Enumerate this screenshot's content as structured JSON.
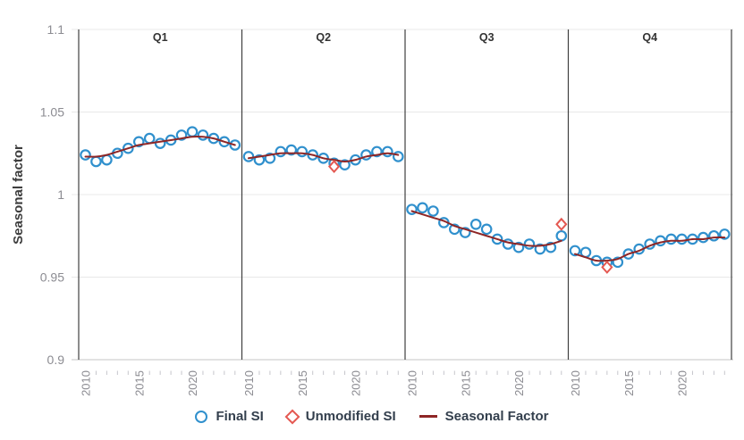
{
  "y_axis": {
    "title": "Seasonal factor",
    "tick_labels": [
      "1.1",
      "1.05",
      "1",
      "0.95",
      "0.9"
    ],
    "tick_values": [
      1.1,
      1.05,
      1.0,
      0.95,
      0.9
    ],
    "min": 0.9,
    "max": 1.1
  },
  "x_axis": {
    "first_year": 2010,
    "last_year": 2024,
    "labeled_years": [
      2010,
      2015,
      2020
    ]
  },
  "legend": {
    "items": [
      {
        "label": "Final SI",
        "marker": "circle"
      },
      {
        "label": "Unmodified SI",
        "marker": "diamond"
      },
      {
        "label": "Seasonal Factor",
        "marker": "line"
      }
    ]
  },
  "colors": {
    "final_si": "#3090cd",
    "unmodified_si": "#e45851",
    "seasonal_factor": "#8e2626",
    "gridline": "#e8e8e8",
    "axis_line": "#c4c4c4",
    "tick_mark": "#c6c6cc",
    "panel_border": "#3f3f3f",
    "tick_label": "#8c8c92",
    "panel_label": "#333333",
    "legend_text": "#333f4d",
    "y_title": "#3d3d3d"
  },
  "chart_data": {
    "type": "scatter",
    "title": "",
    "xlabel": "",
    "ylabel": "Seasonal factor",
    "ylim": [
      0.9,
      1.1
    ],
    "grid": "horizontal",
    "legend_position": "bottom",
    "x": [
      2010,
      2011,
      2012,
      2013,
      2014,
      2015,
      2016,
      2017,
      2018,
      2019,
      2020,
      2021,
      2022,
      2023,
      2024
    ],
    "panels": [
      {
        "label": "Q1",
        "final_si": [
          1.024,
          1.02,
          1.021,
          1.025,
          1.028,
          1.032,
          1.034,
          1.031,
          1.033,
          1.036,
          1.038,
          1.036,
          1.034,
          1.032,
          1.03
        ],
        "seasonal_factor": [
          1.023,
          1.023,
          1.024,
          1.026,
          1.028,
          1.03,
          1.031,
          1.032,
          1.033,
          1.034,
          1.035,
          1.035,
          1.034,
          1.032,
          1.03
        ],
        "unmodified_si": []
      },
      {
        "label": "Q2",
        "final_si": [
          1.023,
          1.021,
          1.022,
          1.026,
          1.027,
          1.026,
          1.024,
          1.022,
          1.019,
          1.018,
          1.021,
          1.024,
          1.026,
          1.026,
          1.023
        ],
        "seasonal_factor": [
          1.022,
          1.023,
          1.024,
          1.025,
          1.025,
          1.025,
          1.024,
          1.022,
          1.021,
          1.02,
          1.021,
          1.023,
          1.024,
          1.025,
          1.024
        ],
        "unmodified_si": [
          {
            "year": 2018,
            "value": 1.017
          }
        ]
      },
      {
        "label": "Q3",
        "final_si": [
          0.991,
          0.992,
          0.99,
          0.983,
          0.979,
          0.977,
          0.982,
          0.979,
          0.973,
          0.97,
          0.968,
          0.97,
          0.967,
          0.968,
          0.975
        ],
        "seasonal_factor": [
          0.99,
          0.988,
          0.986,
          0.984,
          0.981,
          0.979,
          0.977,
          0.975,
          0.973,
          0.971,
          0.97,
          0.969,
          0.969,
          0.97,
          0.972
        ],
        "unmodified_si": [
          {
            "year": 2024,
            "value": 0.982
          }
        ]
      },
      {
        "label": "Q4",
        "final_si": [
          0.966,
          0.965,
          0.96,
          0.959,
          0.959,
          0.964,
          0.967,
          0.97,
          0.972,
          0.973,
          0.973,
          0.973,
          0.974,
          0.975,
          0.976
        ],
        "seasonal_factor": [
          0.964,
          0.962,
          0.96,
          0.96,
          0.961,
          0.964,
          0.966,
          0.969,
          0.971,
          0.972,
          0.972,
          0.973,
          0.973,
          0.974,
          0.974
        ],
        "unmodified_si": [
          {
            "year": 2013,
            "value": 0.956
          }
        ]
      }
    ]
  }
}
